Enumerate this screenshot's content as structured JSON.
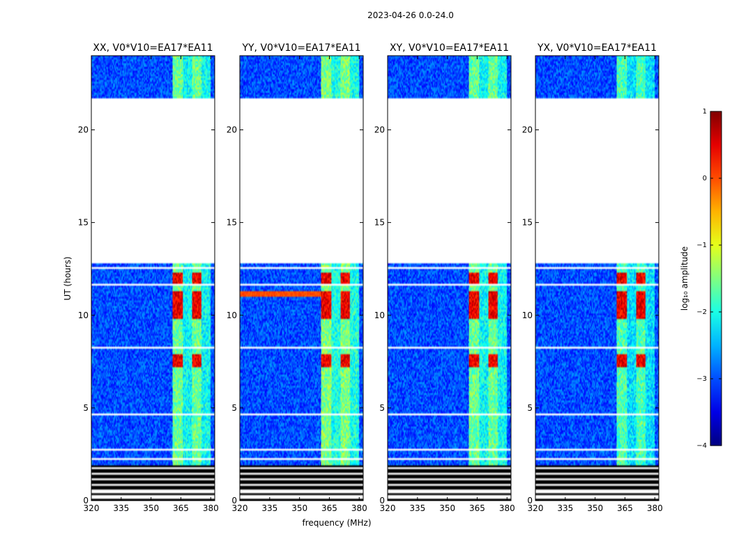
{
  "figure_title": "2023-04-26 0.0-24.0",
  "chart_data": {
    "type": "heatmap",
    "title": "2023-04-26 0.0-24.0",
    "xlabel": "frequency (MHz)",
    "ylabel": "UT (hours)",
    "xlim": [
      320,
      382
    ],
    "ylim": [
      0,
      24
    ],
    "xticks": [
      320,
      335,
      350,
      365,
      380
    ],
    "yticks": [
      0,
      5,
      10,
      15,
      20
    ],
    "panels": [
      {
        "title": "XX, V0*V10=EA17*EA11",
        "band_boost": 0.0,
        "rfi_line": false
      },
      {
        "title": "YY, V0*V10=EA17*EA11",
        "band_boost": 0.1,
        "rfi_line": true
      },
      {
        "title": "XY, V0*V10=EA17*EA11",
        "band_boost": 0.0,
        "rfi_line": false
      },
      {
        "title": "YX, V0*V10=EA17*EA11",
        "band_boost": -0.15,
        "rfi_line": false
      }
    ],
    "colorbar": {
      "label": "log₁₀ amplitude",
      "ticks": [
        1,
        0,
        -1,
        -2,
        -3,
        -4
      ],
      "tick_labels": [
        "1",
        "0",
        "−1",
        "−2",
        "−3",
        "−4"
      ],
      "range": [
        -4,
        1
      ],
      "colormap": "jet"
    },
    "data_features": {
      "no_data_ut_ranges": [
        [
          12.8,
          21.7
        ]
      ],
      "flagged_ut_ranges": [
        [
          0.0,
          1.9
        ]
      ],
      "bright_band_mhz": [
        361,
        380
      ],
      "strong_rfi_ut_ranges": [
        [
          7.2,
          7.9
        ],
        [
          9.8,
          11.3
        ],
        [
          11.6,
          12.3
        ]
      ],
      "baseline_log_amplitude": -3.0,
      "band_log_amplitude": -1.6,
      "strong_rfi_log_amplitude": 0.3
    }
  }
}
